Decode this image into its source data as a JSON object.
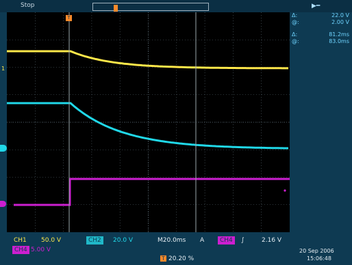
{
  "topbar": {
    "mode": "Stop",
    "run_icon": "run-icon"
  },
  "measurements": {
    "amp_delta_label": "Δ:",
    "amp_delta": "22.0 V",
    "amp_at_label": "@:",
    "amp_at": "2.00 V",
    "time_delta_label": "Δ:",
    "time_delta": "81.2ms",
    "time_at_label": "@:",
    "time_at": "83.0ms"
  },
  "markers": {
    "ch1": "1",
    "trigger_pos": "T"
  },
  "status": {
    "ch1_label": "CH1",
    "ch1_scale": "50.0 V",
    "ch2_label": "CH2",
    "ch2_scale": "20.0 V",
    "time_scale": "M20.0ms",
    "trig_label": "A",
    "trig_source": "CH4",
    "trig_slope": "∫",
    "trig_level": "2.16 V",
    "ch4_label": "CH4",
    "ch4_scale": "5.00 V",
    "position_icon": "T",
    "position": "20.20 %",
    "date": "20 Sep 2006",
    "time": "15:06:48"
  },
  "colors": {
    "ch1": "#ffe84a",
    "ch2": "#20d8e8",
    "ch4": "#cc1fd0",
    "trigger": "#ff8a2a",
    "background": "#0e3a52",
    "screen": "#000000",
    "grid": "#5a6a74"
  }
}
